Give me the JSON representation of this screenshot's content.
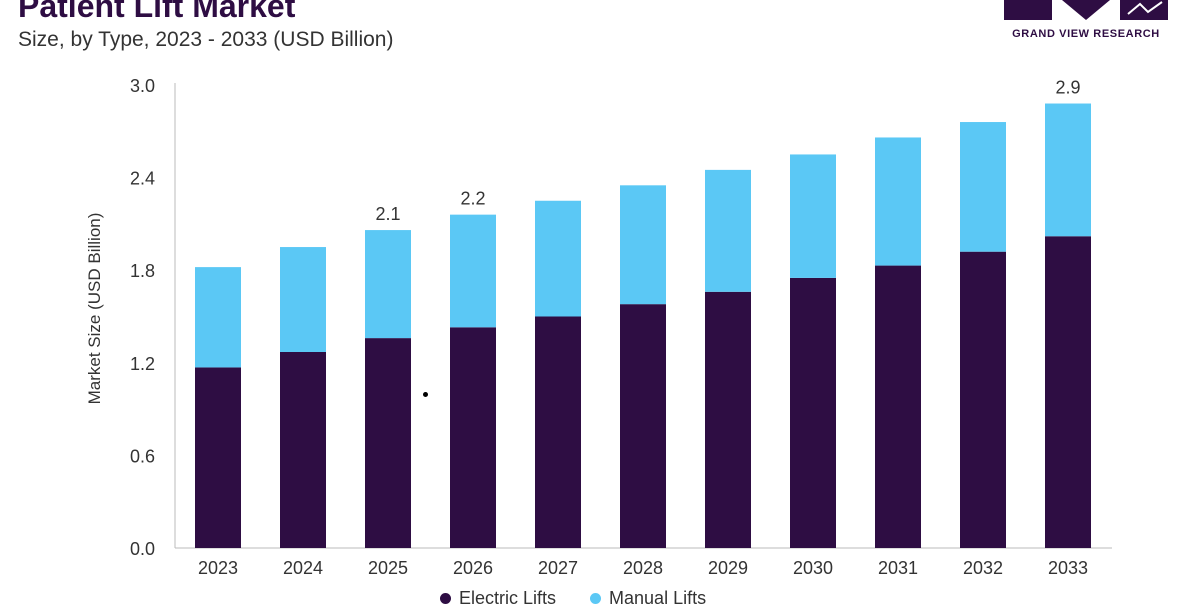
{
  "header": {
    "title": "Patient Lift Market",
    "subtitle": "Size, by Type, 2023 - 2033 (USD Billion)"
  },
  "logo": {
    "text": "GRAND VIEW RESEARCH",
    "icon": "grand-view-research-logo-icon",
    "color": "#2e0d43"
  },
  "colors": {
    "electric": "#2e0d43",
    "manual": "#5bc8f5",
    "axis": "#bbbbbb",
    "text": "#333333"
  },
  "chart_data": {
    "type": "bar",
    "stacked": true,
    "categories": [
      "2023",
      "2024",
      "2025",
      "2026",
      "2027",
      "2028",
      "2029",
      "2030",
      "2031",
      "2032",
      "2033"
    ],
    "series": [
      {
        "name": "Electric Lifts",
        "values": [
          1.17,
          1.27,
          1.36,
          1.43,
          1.5,
          1.58,
          1.66,
          1.75,
          1.83,
          1.92,
          2.02
        ]
      },
      {
        "name": "Manual Lifts",
        "values": [
          0.65,
          0.68,
          0.7,
          0.73,
          0.75,
          0.77,
          0.79,
          0.8,
          0.83,
          0.84,
          0.86
        ]
      }
    ],
    "data_labels": {
      "2025": "2.1",
      "2026": "2.2",
      "2033": "2.9"
    },
    "ylabel": "Market Size (USD Billion)",
    "xlabel": "",
    "ylim": [
      0,
      3.0
    ],
    "yticks": [
      "0.0",
      "0.6",
      "1.2",
      "1.8",
      "2.4",
      "3.0"
    ],
    "grid": false,
    "legend_position": "bottom"
  }
}
